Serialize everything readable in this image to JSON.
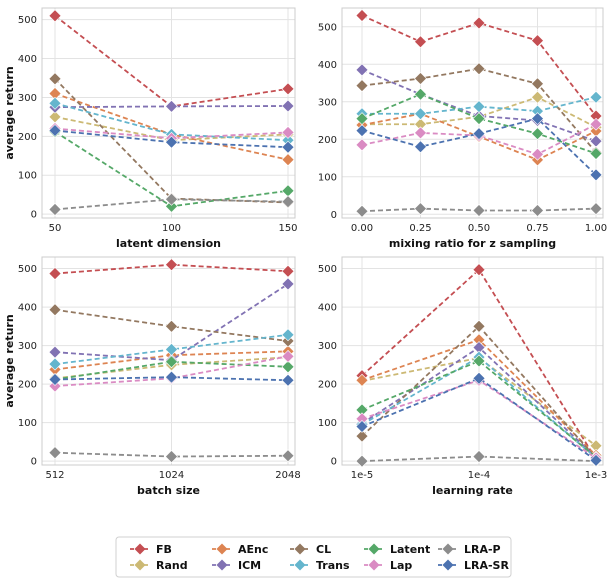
{
  "series_styles": [
    {
      "name": "FB",
      "color": "#c44e52"
    },
    {
      "name": "Rand",
      "color": "#ccb974"
    },
    {
      "name": "AEnc",
      "color": "#dd8452"
    },
    {
      "name": "ICM",
      "color": "#8172b3"
    },
    {
      "name": "CL",
      "color": "#937860"
    },
    {
      "name": "Trans",
      "color": "#64b5cd"
    },
    {
      "name": "Latent",
      "color": "#55a868"
    },
    {
      "name": "Lap",
      "color": "#da8bc3"
    },
    {
      "name": "LRA-P",
      "color": "#8c8c8c"
    },
    {
      "name": "LRA-SR",
      "color": "#4c72b0"
    }
  ],
  "chart_data": [
    {
      "type": "line",
      "xlabel": "latent dimension",
      "ylabel": "average return",
      "categories": [
        "50",
        "100",
        "150"
      ],
      "ylim": [
        -10,
        530
      ],
      "yticks": [
        0,
        100,
        200,
        300,
        400,
        500
      ],
      "series": [
        {
          "name": "FB",
          "values": [
            510,
            277,
            322
          ]
        },
        {
          "name": "Rand",
          "values": [
            250,
            190,
            205
          ]
        },
        {
          "name": "AEnc",
          "values": [
            310,
            205,
            140
          ]
        },
        {
          "name": "ICM",
          "values": [
            275,
            277,
            278
          ]
        },
        {
          "name": "CL",
          "values": [
            348,
            40,
            30
          ]
        },
        {
          "name": "Trans",
          "values": [
            285,
            205,
            190
          ]
        },
        {
          "name": "Latent",
          "values": [
            212,
            20,
            60
          ]
        },
        {
          "name": "Lap",
          "values": [
            220,
            195,
            210
          ]
        },
        {
          "name": "LRA-P",
          "values": [
            12,
            38,
            32
          ]
        },
        {
          "name": "LRA-SR",
          "values": [
            215,
            185,
            172
          ]
        }
      ]
    },
    {
      "type": "line",
      "xlabel": "mixing ratio for z sampling",
      "ylabel": "",
      "categories": [
        "0.00",
        "0.25",
        "0.50",
        "0.75",
        "1.00"
      ],
      "ylim": [
        -10,
        550
      ],
      "yticks": [
        0,
        100,
        200,
        300,
        400,
        500
      ],
      "series": [
        {
          "name": "FB",
          "values": [
            530,
            460,
            510,
            463,
            262
          ]
        },
        {
          "name": "Rand",
          "values": [
            240,
            240,
            260,
            312,
            232
          ]
        },
        {
          "name": "AEnc",
          "values": [
            238,
            268,
            207,
            145,
            222
          ]
        },
        {
          "name": "ICM",
          "values": [
            385,
            320,
            262,
            250,
            195
          ]
        },
        {
          "name": "CL",
          "values": [
            343,
            362,
            388,
            348,
            165
          ]
        },
        {
          "name": "Trans",
          "values": [
            268,
            268,
            287,
            275,
            312
          ]
        },
        {
          "name": "Latent",
          "values": [
            255,
            320,
            255,
            215,
            162
          ]
        },
        {
          "name": "Lap",
          "values": [
            185,
            217,
            210,
            160,
            240
          ]
        },
        {
          "name": "LRA-P",
          "values": [
            8,
            15,
            10,
            10,
            15
          ]
        },
        {
          "name": "LRA-SR",
          "values": [
            223,
            180,
            215,
            255,
            105
          ]
        }
      ]
    },
    {
      "type": "line",
      "xlabel": "batch size",
      "ylabel": "average return",
      "categories": [
        "512",
        "1024",
        "2048"
      ],
      "ylim": [
        -10,
        530
      ],
      "yticks": [
        0,
        100,
        200,
        300,
        400,
        500
      ],
      "series": [
        {
          "name": "FB",
          "values": [
            487,
            510,
            493
          ]
        },
        {
          "name": "Rand",
          "values": [
            215,
            250,
            270
          ]
        },
        {
          "name": "AEnc",
          "values": [
            238,
            275,
            285
          ]
        },
        {
          "name": "ICM",
          "values": [
            283,
            262,
            460
          ]
        },
        {
          "name": "CL",
          "values": [
            393,
            350,
            312
          ]
        },
        {
          "name": "Trans",
          "values": [
            252,
            290,
            328
          ]
        },
        {
          "name": "Latent",
          "values": [
            212,
            258,
            245
          ]
        },
        {
          "name": "Lap",
          "values": [
            195,
            215,
            272
          ]
        },
        {
          "name": "LRA-P",
          "values": [
            22,
            12,
            14
          ]
        },
        {
          "name": "LRA-SR",
          "values": [
            212,
            218,
            210
          ]
        }
      ]
    },
    {
      "type": "line",
      "xlabel": "learning rate",
      "ylabel": "",
      "categories": [
        "1e-5",
        "1e-4",
        "1e-3"
      ],
      "ylim": [
        -10,
        530
      ],
      "yticks": [
        0,
        100,
        200,
        300,
        400,
        500
      ],
      "series": [
        {
          "name": "FB",
          "values": [
            222,
            497,
            5
          ]
        },
        {
          "name": "Rand",
          "values": [
            208,
            268,
            40
          ]
        },
        {
          "name": "AEnc",
          "values": [
            210,
            315,
            15
          ]
        },
        {
          "name": "ICM",
          "values": [
            98,
            295,
            10
          ]
        },
        {
          "name": "CL",
          "values": [
            65,
            350,
            8
          ]
        },
        {
          "name": "Trans",
          "values": [
            95,
            270,
            8
          ]
        },
        {
          "name": "Latent",
          "values": [
            133,
            260,
            10
          ]
        },
        {
          "name": "Lap",
          "values": [
            110,
            210,
            8
          ]
        },
        {
          "name": "LRA-P",
          "values": [
            0,
            12,
            0
          ]
        },
        {
          "name": "LRA-SR",
          "values": [
            90,
            215,
            2
          ]
        }
      ]
    }
  ]
}
